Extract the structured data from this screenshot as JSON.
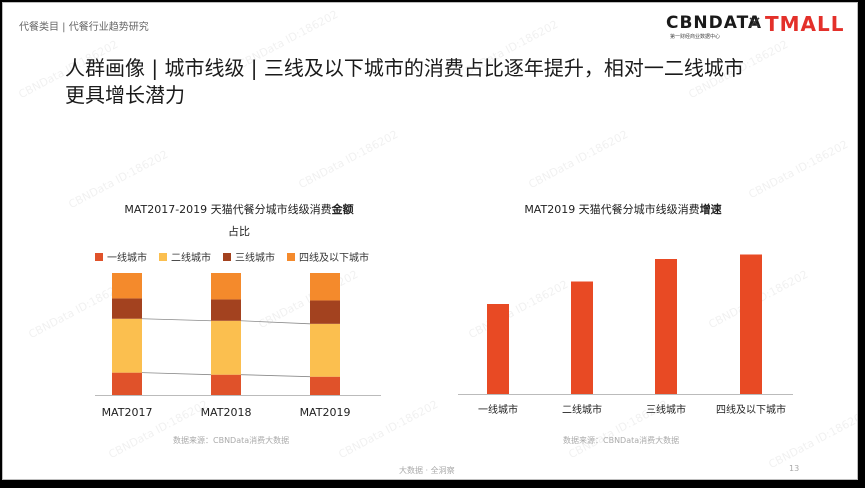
{
  "header": {
    "category": "代餐类目 | 代餐行业趋势研究"
  },
  "logos": {
    "cbndata": "CBNDATA",
    "cbndata_sub": "第一财经商业数据中心",
    "times": "×",
    "tmall": "TMALL"
  },
  "title_line1": "人群画像 | 城市线级 | 三线及以下城市的消费占比逐年提升，相对一二线城市",
  "title_line2": "更具增长潜力",
  "colors": {
    "tier1": "#e0522a",
    "tier2": "#fbbf4f",
    "tier3": "#a3421f",
    "tier4": "#f48a2c",
    "growth": "#e84a24"
  },
  "chart_data": [
    {
      "type": "bar",
      "stacked": true,
      "title_prefix": "MAT2017-2019 天猫代餐分城市线级消费",
      "title_bold": "金额",
      "title_suffix": "占比",
      "categories": [
        "MAT2017",
        "MAT2018",
        "MAT2019"
      ],
      "series": [
        {
          "name": "一线城市",
          "values": [
            22,
            20,
            18
          ]
        },
        {
          "name": "二线城市",
          "values": [
            53,
            53,
            52
          ]
        },
        {
          "name": "三线城市",
          "values": [
            20,
            21,
            23
          ]
        },
        {
          "name": "四线及以下城市",
          "values": [
            25,
            26,
            27
          ]
        }
      ],
      "connector_lines": true
    },
    {
      "type": "bar",
      "title_prefix": "MAT2019 天猫代餐分城市线级消费",
      "title_bold": "增速",
      "categories": [
        "一线城市",
        "二线城市",
        "三线城市",
        "四线及以下城市"
      ],
      "values": [
        60,
        75,
        90,
        93
      ]
    }
  ],
  "sources": {
    "left": "数据来源：CBNData消费大数据",
    "right": "数据来源：CBNData消费大数据"
  },
  "footer": {
    "text": "大数据 · 全洞察",
    "page": "13"
  },
  "watermark": "CBNData ID:186202"
}
